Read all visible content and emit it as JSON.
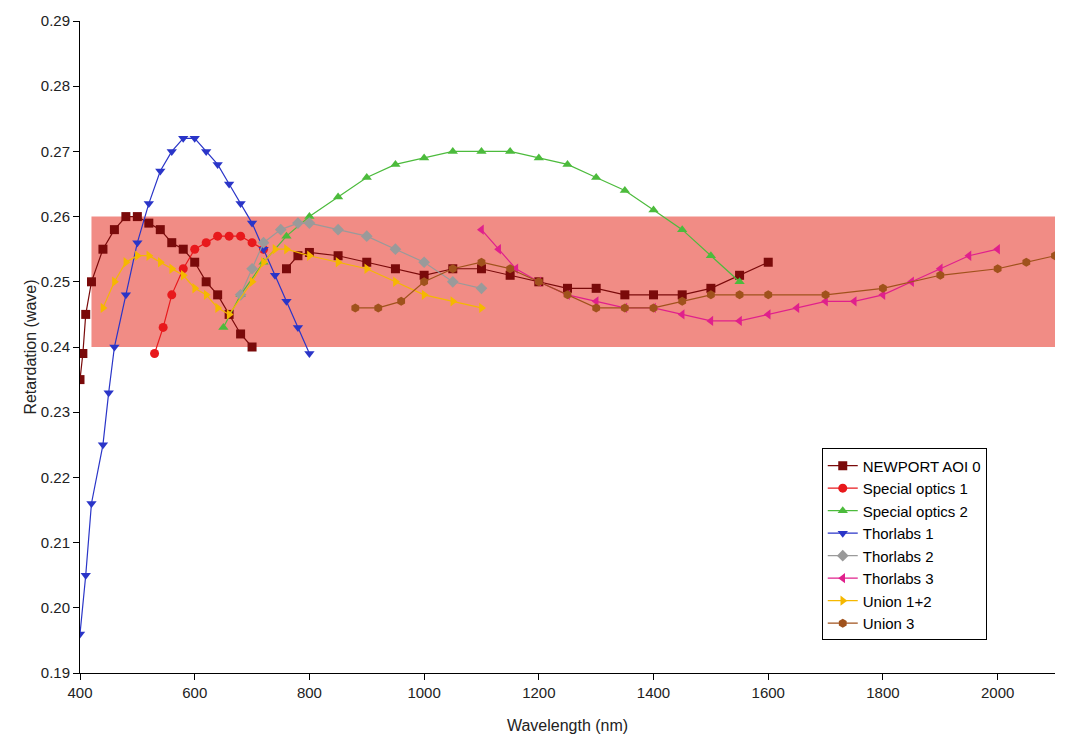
{
  "chart_data": {
    "type": "line",
    "x_label": "Wavelength (nm)",
    "y_label": "Retardation (wave)",
    "xlim": [
      400,
      2100
    ],
    "xticks": [
      400,
      600,
      800,
      1000,
      1200,
      1400,
      1600,
      1800,
      2000
    ],
    "ylim": [
      0.19,
      0.29
    ],
    "yticks": [
      0.19,
      {
        "value": 0.2,
        "label": "0.20"
      },
      0.21,
      0.22,
      0.23,
      0.24,
      0.25,
      0.26,
      0.27,
      0.28,
      0.29
    ],
    "grid": false,
    "legend": "lower right",
    "tolerance_band": {
      "x": [
        420,
        2100
      ],
      "y": [
        0.24,
        0.26
      ],
      "color": "#f08078"
    },
    "series": [
      {
        "name": "NEWPORT AOI 0",
        "color": "#7a0a0a",
        "marker": "square",
        "x": [
          400,
          405,
          410,
          420,
          440,
          460,
          480,
          500,
          520,
          540,
          560,
          580,
          600,
          620,
          640,
          660,
          680,
          700,
          740,
          760,
          780,
          800,
          850,
          900,
          950,
          1000,
          1050,
          1100,
          1150,
          1200,
          1250,
          1300,
          1350,
          1400,
          1450,
          1500,
          1550,
          1600
        ],
        "values": [
          0.235,
          0.239,
          0.245,
          0.25,
          0.255,
          0.258,
          0.26,
          0.26,
          0.259,
          0.258,
          0.256,
          0.255,
          0.253,
          0.25,
          0.248,
          0.245,
          0.242,
          0.24,
          null,
          0.252,
          0.254,
          0.2545,
          0.254,
          0.253,
          0.252,
          0.251,
          0.252,
          0.252,
          0.251,
          0.25,
          0.249,
          0.249,
          0.248,
          0.248,
          0.248,
          0.249,
          0.251,
          0.253
        ]
      },
      {
        "name": "Special optics 1",
        "color": "#e8191c",
        "marker": "circle",
        "x": [
          530,
          545,
          560,
          580,
          600,
          620,
          640,
          660,
          680,
          700,
          720
        ],
        "values": [
          0.239,
          0.243,
          0.248,
          0.252,
          0.255,
          0.256,
          0.257,
          0.257,
          0.257,
          0.256,
          0.255
        ]
      },
      {
        "name": "Special optics 2",
        "color": "#4cbb3c",
        "marker": "triangle-up",
        "x": [
          650,
          680,
          720,
          760,
          800,
          850,
          900,
          950,
          1000,
          1050,
          1100,
          1150,
          1200,
          1250,
          1300,
          1350,
          1400,
          1450,
          1500,
          1550
        ],
        "values": [
          0.243,
          0.248,
          0.253,
          0.257,
          0.26,
          0.263,
          0.266,
          0.268,
          0.269,
          0.27,
          0.27,
          0.27,
          0.269,
          0.268,
          0.266,
          0.264,
          0.261,
          0.258,
          0.254,
          0.25
        ]
      },
      {
        "name": "Thorlabs 1",
        "color": "#2a35c8",
        "marker": "triangle-down",
        "x": [
          400,
          410,
          420,
          440,
          450,
          460,
          480,
          500,
          520,
          540,
          560,
          580,
          600,
          620,
          640,
          660,
          680,
          700,
          720,
          740,
          760,
          780,
          800
        ],
        "values": [
          0.196,
          0.205,
          0.216,
          0.225,
          0.233,
          0.24,
          0.248,
          0.256,
          0.262,
          0.267,
          0.27,
          0.272,
          0.272,
          0.27,
          0.268,
          0.265,
          0.262,
          0.259,
          0.255,
          0.251,
          0.247,
          0.243,
          0.239
        ]
      },
      {
        "name": "Thorlabs 2",
        "color": "#9a9a9a",
        "marker": "diamond",
        "x": [
          680,
          700,
          720,
          750,
          780,
          800,
          850,
          900,
          950,
          1000,
          1050,
          1100
        ],
        "values": [
          0.248,
          0.252,
          0.256,
          0.258,
          0.259,
          0.259,
          0.258,
          0.257,
          0.255,
          0.253,
          0.25,
          0.249
        ]
      },
      {
        "name": "Thorlabs 3",
        "color": "#e0208c",
        "marker": "triangle-left",
        "x": [
          1100,
          1130,
          1160,
          1200,
          1250,
          1300,
          1350,
          1400,
          1450,
          1500,
          1550,
          1600,
          1650,
          1700,
          1750,
          1800,
          1850,
          1900,
          1950,
          2000
        ],
        "values": [
          0.258,
          0.255,
          0.252,
          0.25,
          0.248,
          0.247,
          0.246,
          0.246,
          0.245,
          0.244,
          0.244,
          0.245,
          0.246,
          0.247,
          0.247,
          0.248,
          0.25,
          0.252,
          0.254,
          0.255
        ]
      },
      {
        "name": "Union 1+2",
        "color": "#f5b800",
        "marker": "triangle-right",
        "x": [
          440,
          460,
          480,
          500,
          520,
          540,
          560,
          580,
          600,
          620,
          640,
          660,
          700,
          720,
          740,
          760,
          800,
          850,
          900,
          950,
          1000,
          1050,
          1100
        ],
        "values": [
          0.246,
          0.25,
          0.253,
          0.254,
          0.254,
          0.253,
          0.252,
          0.251,
          0.249,
          0.248,
          0.246,
          0.245,
          0.25,
          0.253,
          0.255,
          0.255,
          0.254,
          0.253,
          0.252,
          0.25,
          0.248,
          0.247,
          0.246
        ]
      },
      {
        "name": "Union 3",
        "color": "#a0521c",
        "marker": "hexagon",
        "x": [
          880,
          920,
          960,
          1000,
          1050,
          1100,
          1150,
          1200,
          1250,
          1300,
          1350,
          1400,
          1450,
          1500,
          1550,
          1600,
          1700,
          1800,
          1900,
          2000,
          2050,
          2100
        ],
        "values": [
          0.246,
          0.246,
          0.247,
          0.25,
          0.252,
          0.253,
          0.252,
          0.25,
          0.248,
          0.246,
          0.246,
          0.246,
          0.247,
          0.248,
          0.248,
          0.248,
          0.248,
          0.249,
          0.251,
          0.252,
          0.253,
          0.254
        ]
      }
    ]
  }
}
